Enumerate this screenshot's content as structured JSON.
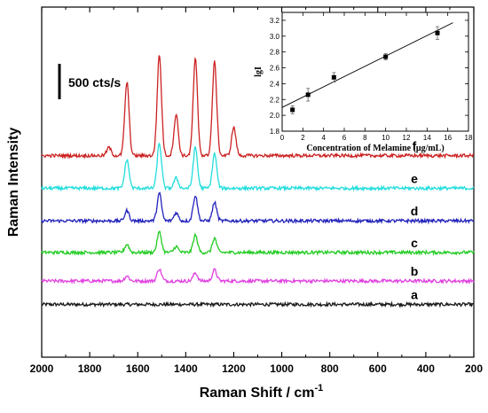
{
  "chart_data": [
    {
      "type": "line",
      "xlabel": "Raman Shift / cm",
      "xlabel_superscript": "-1",
      "ylabel": "Raman Intensity",
      "xlim": [
        2000,
        200
      ],
      "x_reversed": true,
      "xticks": [
        2000,
        1800,
        1600,
        1400,
        1200,
        1000,
        800,
        600,
        400,
        200
      ],
      "scale_bar_label": "500 cts/s",
      "y_tick_labels_shown": false,
      "series": [
        {
          "name": "a",
          "color": "#1a1a1a",
          "baseline": 30,
          "peaks": []
        },
        {
          "name": "b",
          "color": "#e040e0",
          "baseline": 53,
          "peaks": [
            [
              1645,
              5
            ],
            [
              1510,
              12
            ],
            [
              1360,
              8
            ],
            [
              1280,
              11
            ]
          ]
        },
        {
          "name": "c",
          "color": "#22cc22",
          "baseline": 81,
          "peaks": [
            [
              1645,
              8
            ],
            [
              1510,
              20
            ],
            [
              1440,
              6
            ],
            [
              1360,
              17
            ],
            [
              1280,
              14
            ]
          ]
        },
        {
          "name": "d",
          "color": "#2222bb",
          "baseline": 112,
          "peaks": [
            [
              1645,
              10
            ],
            [
              1510,
              27
            ],
            [
              1440,
              8
            ],
            [
              1360,
              25
            ],
            [
              1280,
              18
            ]
          ]
        },
        {
          "name": "e",
          "color": "#22dddd",
          "baseline": 144,
          "peaks": [
            [
              1645,
              28
            ],
            [
              1510,
              44
            ],
            [
              1440,
              10
            ],
            [
              1360,
              40
            ],
            [
              1280,
              34
            ]
          ]
        },
        {
          "name": "f",
          "color": "#cc2222",
          "baseline": 176,
          "peaks": [
            [
              1645,
              72
            ],
            [
              1510,
              99
            ],
            [
              1440,
              40
            ],
            [
              1360,
              95
            ],
            [
              1280,
              92
            ],
            [
              1200,
              28
            ],
            [
              1720,
              8
            ]
          ]
        }
      ]
    },
    {
      "type": "scatter",
      "xlabel": "Concentration of Melamine (μg/mL)",
      "ylabel": "lgI",
      "xlim": [
        0,
        18
      ],
      "ylim": [
        1.8,
        3.3
      ],
      "xticks": [
        0,
        2,
        4,
        6,
        8,
        10,
        12,
        14,
        16,
        18
      ],
      "yticks": [
        1.8,
        2.0,
        2.2,
        2.4,
        2.6,
        2.8,
        3.0,
        3.2
      ],
      "x": [
        1,
        2.5,
        5,
        10,
        15
      ],
      "y": [
        2.07,
        2.26,
        2.48,
        2.74,
        3.04
      ],
      "error": [
        0.05,
        0.08,
        0.06,
        0.04,
        0.08
      ],
      "fit_line": {
        "x": [
          0,
          16.5
        ],
        "y": [
          2.1,
          3.17
        ]
      }
    }
  ]
}
